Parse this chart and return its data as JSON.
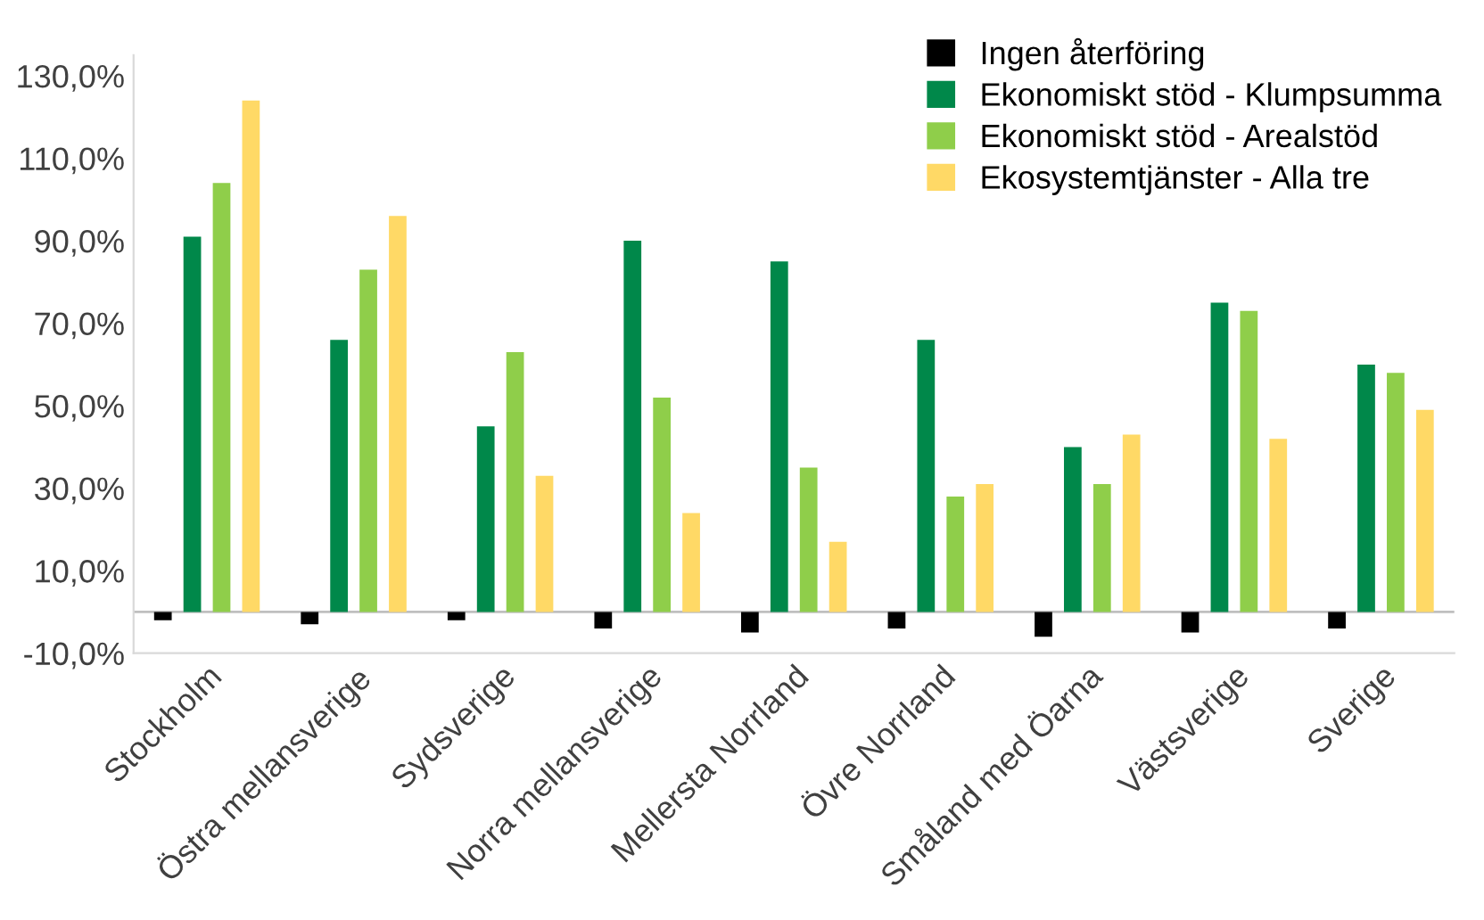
{
  "chart_data": {
    "type": "bar",
    "categories": [
      "Stockholm",
      "Östra mellansverige",
      "Sydsverige",
      "Norra mellansverige",
      "Mellersta Norrland",
      "Övre Norrland",
      "Småland med Öarna",
      "Västsverige",
      "Sverige"
    ],
    "series": [
      {
        "name": "Ingen återföring",
        "color": "#000000",
        "values": [
          -2,
          -3,
          -2,
          -4,
          -5,
          -4,
          -6,
          -5,
          -4
        ]
      },
      {
        "name": "Ekonomiskt stöd - Klumpsumma",
        "color": "#00884a",
        "values": [
          91,
          66,
          45,
          90,
          85,
          66,
          40,
          75,
          60
        ]
      },
      {
        "name": "Ekonomiskt stöd - Arealstöd",
        "color": "#8fce4a",
        "values": [
          104,
          83,
          63,
          52,
          35,
          28,
          31,
          73,
          58
        ]
      },
      {
        "name": "Ekosystemtjänster - Alla tre",
        "color": "#ffd966",
        "values": [
          124,
          96,
          33,
          24,
          17,
          31,
          43,
          42,
          49
        ]
      }
    ],
    "ylim": [
      -10,
      135
    ],
    "yticks": [
      {
        "value": -10,
        "label": "-10,0%"
      },
      {
        "value": 10,
        "label": "10,0%"
      },
      {
        "value": 30,
        "label": "30,0%"
      },
      {
        "value": 50,
        "label": "50,0%"
      },
      {
        "value": 70,
        "label": "70,0%"
      },
      {
        "value": 90,
        "label": "90,0%"
      },
      {
        "value": 110,
        "label": "110,0%"
      },
      {
        "value": 130,
        "label": "130,0%"
      }
    ],
    "grid": false,
    "legend": "top right"
  }
}
